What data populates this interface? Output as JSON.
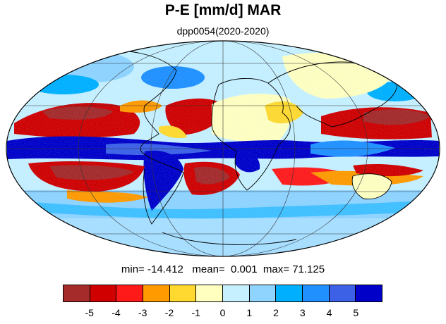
{
  "title": "P-E [mm/d] MAR",
  "subtitle": "dpp0054(2020-2020)",
  "stats": {
    "min_label": "min=",
    "min_value": "-14.412",
    "mean_label": "mean=",
    "mean_value": "0.001",
    "max_label": "max=",
    "max_value": "71.125"
  },
  "map": {
    "projection": "Mollweide",
    "field": "precipitation minus evaporation",
    "land_fill": "#ffffff",
    "coastline_color": "#000000",
    "graticule_color": "#333333"
  },
  "colorbar": {
    "colors": [
      "#a52a2a",
      "#d00000",
      "#ff1a1a",
      "#ff9a00",
      "#ffd92f",
      "#ffffc0",
      "#c6f0ff",
      "#8fd3ff",
      "#00b0ff",
      "#2090ff",
      "#3c60e6",
      "#0000c8"
    ],
    "tick_labels": [
      "-5",
      "-4",
      "-3",
      "-2",
      "-1",
      "0",
      "1",
      "2",
      "3",
      "4",
      "5"
    ]
  }
}
